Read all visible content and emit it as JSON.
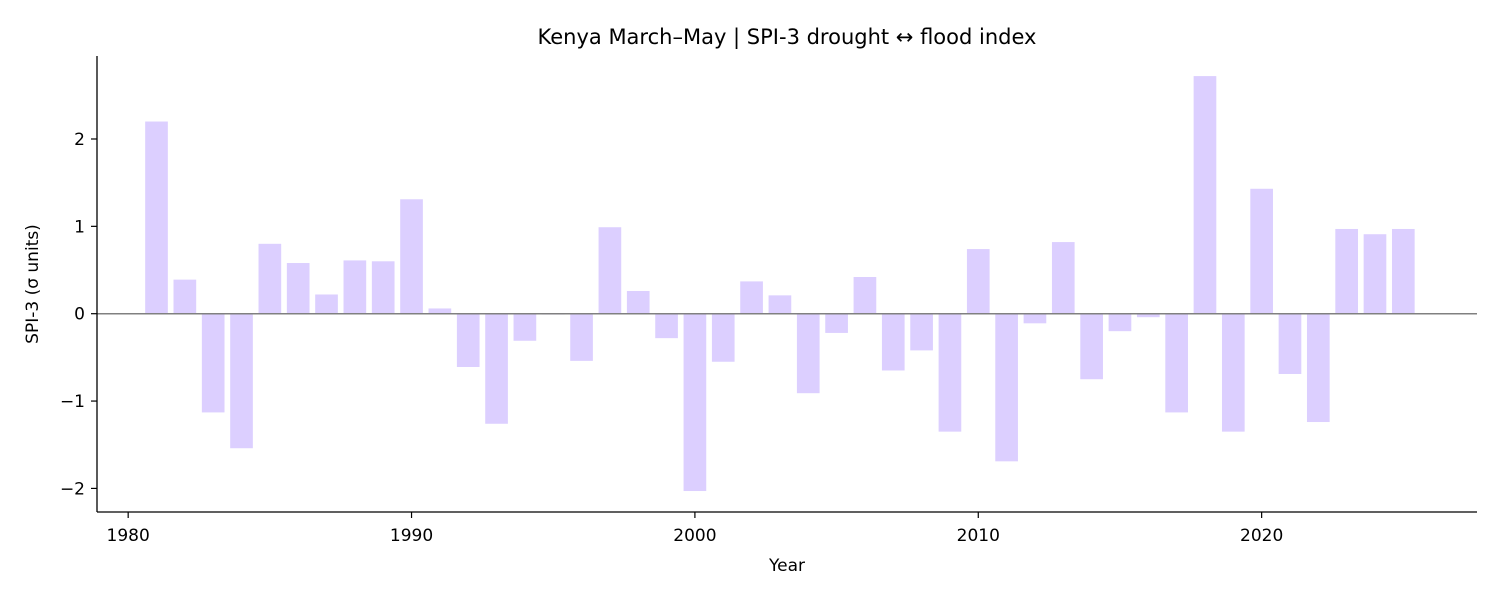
{
  "chart_data": {
    "type": "bar",
    "title": "Kenya March–May | SPI-3 drought ↔ flood index",
    "xlabel": "Year",
    "ylabel": "SPI-3 (σ units)",
    "x_ticks": [
      1980,
      1990,
      2000,
      2010,
      2020
    ],
    "x_tick_labels": [
      "1980",
      "1990",
      "2000",
      "2010",
      "2020"
    ],
    "y_ticks": [
      -2,
      -1,
      0,
      1,
      2
    ],
    "y_tick_labels": [
      "−2",
      "−1",
      "0",
      "1",
      "2"
    ],
    "xlim": [
      1978.9,
      2027.6
    ],
    "ylim": [
      -2.27,
      2.95
    ],
    "grid": false,
    "zero_line": true,
    "bar_color": "#dccfff",
    "zero_line_color": "#808080",
    "categories": [
      1981,
      1982,
      1983,
      1984,
      1985,
      1986,
      1987,
      1988,
      1989,
      1990,
      1991,
      1992,
      1993,
      1994,
      1995,
      1996,
      1997,
      1998,
      1999,
      2000,
      2001,
      2002,
      2003,
      2004,
      2005,
      2006,
      2007,
      2008,
      2009,
      2010,
      2011,
      2012,
      2013,
      2014,
      2015,
      2016,
      2017,
      2018,
      2019,
      2020,
      2021,
      2022,
      2023,
      2024,
      2025
    ],
    "values": [
      2.2,
      0.39,
      -1.13,
      -1.54,
      0.8,
      0.58,
      0.22,
      0.61,
      0.6,
      1.31,
      0.06,
      -0.61,
      -1.26,
      -0.31,
      -0.01,
      -0.54,
      0.99,
      0.26,
      -0.28,
      -2.03,
      -0.55,
      0.37,
      0.21,
      -0.91,
      -0.22,
      0.42,
      -0.65,
      -0.42,
      -1.35,
      0.74,
      -1.69,
      -0.11,
      0.82,
      -0.75,
      -0.2,
      -0.04,
      -1.13,
      2.72,
      -1.35,
      1.43,
      -0.69,
      -1.24,
      0.97,
      0.91,
      0.97
    ]
  }
}
